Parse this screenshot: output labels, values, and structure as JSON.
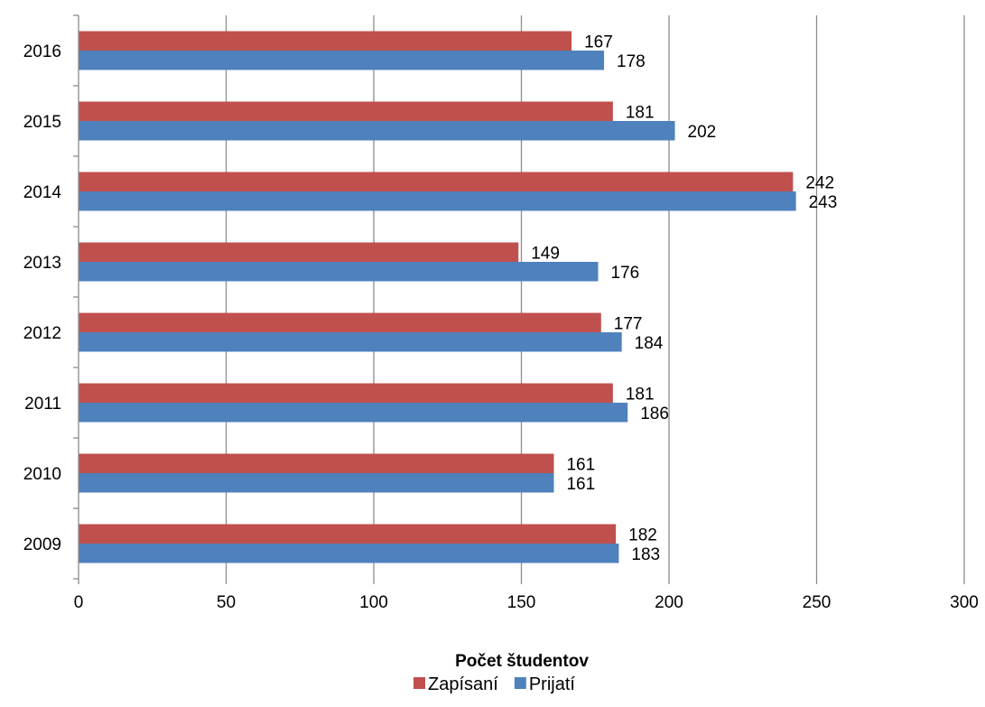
{
  "chart_data": {
    "type": "bar",
    "orientation": "horizontal",
    "categories": [
      "2016",
      "2015",
      "2014",
      "2013",
      "2012",
      "2011",
      "2010",
      "2009"
    ],
    "series": [
      {
        "name": "Zapísaní",
        "color": "#c0504d",
        "values": [
          167,
          181,
          242,
          149,
          177,
          181,
          161,
          182
        ]
      },
      {
        "name": "Prijatí",
        "color": "#4f81bd",
        "values": [
          178,
          202,
          243,
          176,
          184,
          186,
          161,
          183
        ]
      }
    ],
    "xlabel": "Počet študentov",
    "xlim": [
      0,
      300
    ],
    "xticks": [
      0,
      50,
      100,
      150,
      200,
      250,
      300
    ],
    "grid": "vertical",
    "legend": "bottom"
  }
}
